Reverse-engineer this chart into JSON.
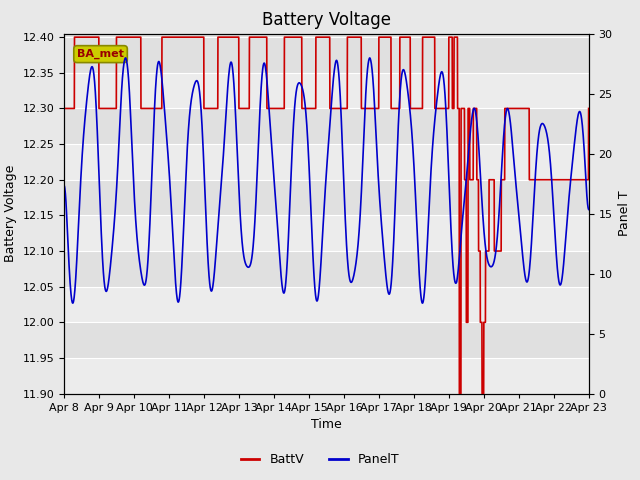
{
  "title": "Battery Voltage",
  "xlabel": "Time",
  "ylabel_left": "Battery Voltage",
  "ylabel_right": "Panel T",
  "ylim_left": [
    11.9,
    12.405
  ],
  "ylim_right": [
    0,
    30
  ],
  "yticks_left": [
    11.9,
    11.95,
    12.0,
    12.05,
    12.1,
    12.15,
    12.2,
    12.25,
    12.3,
    12.35,
    12.4
  ],
  "yticks_right": [
    0,
    5,
    10,
    15,
    20,
    25,
    30
  ],
  "fig_bg_color": "#e8e8e8",
  "plot_bg_color": "#e0e0e0",
  "band_light_color": "#ececec",
  "line_color_batt": "#cc0000",
  "line_color_panel": "#0000cc",
  "annotation_text": "BA_met",
  "annotation_bg": "#cccc00",
  "legend_labels": [
    "BattV",
    "PanelT"
  ],
  "title_fontsize": 12,
  "axis_fontsize": 9,
  "tick_fontsize": 8
}
